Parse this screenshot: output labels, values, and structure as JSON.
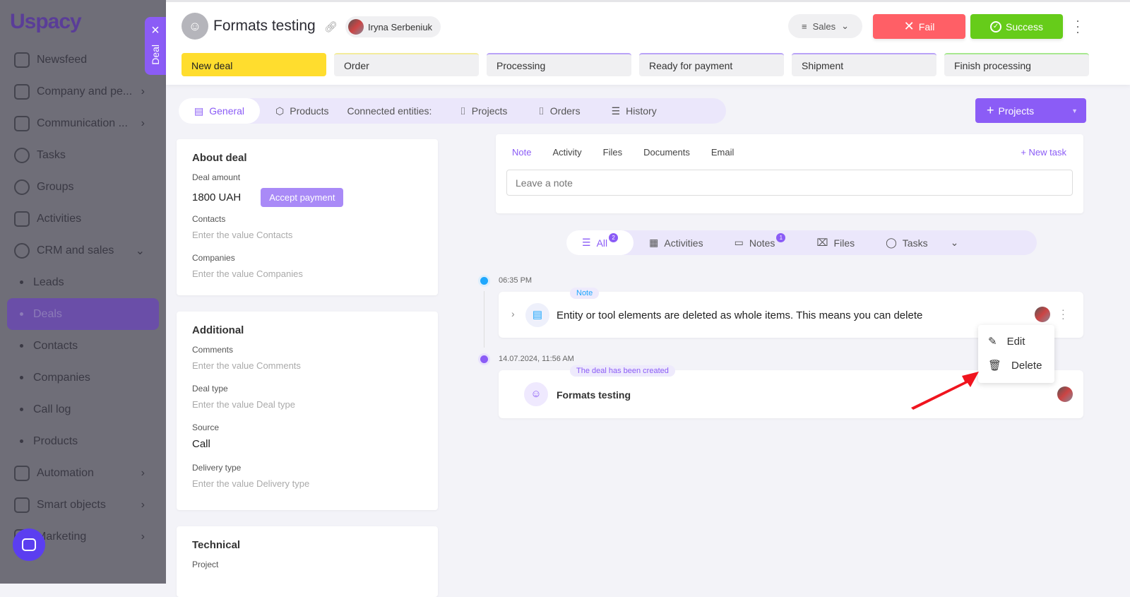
{
  "sidebar": {
    "logo": "Uspacy",
    "items": [
      {
        "label": "Newsfeed",
        "chevron": false
      },
      {
        "label": "Company and pe...",
        "chevron": true
      },
      {
        "label": "Communication ...",
        "chevron": true
      },
      {
        "label": "Tasks",
        "chevron": false
      },
      {
        "label": "Groups",
        "chevron": false
      },
      {
        "label": "Activities",
        "chevron": false
      },
      {
        "label": "CRM and sales",
        "chevron": "down"
      }
    ],
    "sub_items": [
      "Leads",
      "Deals",
      "Contacts",
      "Companies",
      "Call log",
      "Products"
    ],
    "active": "Deals",
    "items_after": [
      {
        "label": "Automation"
      },
      {
        "label": "Smart objects"
      },
      {
        "label": "Marketing"
      }
    ]
  },
  "drawer_tab": {
    "label": "Deal",
    "close": "×"
  },
  "header": {
    "title": "Formats testing",
    "owner": "Iryna Serbeniuk",
    "pipeline": "Sales",
    "fail_label": "Fail",
    "success_label": "Success",
    "stages": [
      "New deal",
      "Order",
      "Processing",
      "Ready for payment",
      "Shipment",
      "Finish processing"
    ]
  },
  "tabs": {
    "items": [
      "General",
      "Products"
    ],
    "connected_label": "Connected entities:",
    "connected": [
      "Projects",
      "Orders",
      "History"
    ]
  },
  "projects_button": "Projects",
  "about": {
    "title": "About deal",
    "amount_label": "Deal amount",
    "amount": "1800 UAH",
    "accept": "Accept payment",
    "contacts_label": "Contacts",
    "contacts_ph": "Enter the value Contacts",
    "companies_label": "Companies",
    "companies_ph": "Enter the value Companies"
  },
  "additional": {
    "title": "Additional",
    "comments_label": "Comments",
    "comments_ph": "Enter the value Comments",
    "type_label": "Deal type",
    "type_ph": "Enter the value Deal type",
    "source_label": "Source",
    "source": "Call",
    "delivery_label": "Delivery type",
    "delivery_ph": "Enter the value Delivery type"
  },
  "technical": {
    "title": "Technical",
    "project_label": "Project"
  },
  "note_panel": {
    "tabs": [
      "Note",
      "Activity",
      "Files",
      "Documents",
      "Email"
    ],
    "new_task": "New task",
    "placeholder": "Leave a note"
  },
  "filters": [
    {
      "label": "All",
      "badge": "2"
    },
    {
      "label": "Activities"
    },
    {
      "label": "Notes",
      "badge": "1"
    },
    {
      "label": "Files"
    },
    {
      "label": "Tasks"
    }
  ],
  "timeline": [
    {
      "time": "06:35 PM",
      "tag": "Note",
      "text": "Entity or tool elements are deleted as whole items. This means you can delete",
      "dot_color": "#1ea7fd"
    },
    {
      "time": "14.07.2024, 11:56 AM",
      "tag": "The deal has been created",
      "text": "Formats testing",
      "dot_color": "#8b5cf6"
    }
  ],
  "context_menu": {
    "edit": "Edit",
    "delete": "Delete"
  }
}
